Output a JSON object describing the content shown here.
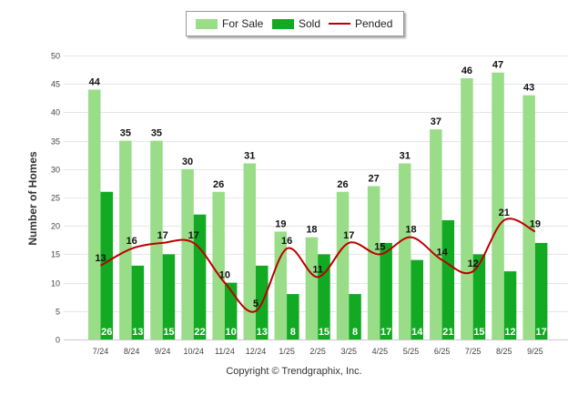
{
  "chart_data": {
    "type": "bar",
    "title": "",
    "xlabel": "",
    "ylabel": "Number of Homes",
    "ylim": [
      0,
      50
    ],
    "yticks": [
      0,
      5,
      10,
      15,
      20,
      25,
      30,
      35,
      40,
      45,
      50
    ],
    "categories": [
      "7/24",
      "8/24",
      "9/24",
      "10/24",
      "11/24",
      "12/24",
      "1/25",
      "2/25",
      "3/25",
      "4/25",
      "5/25",
      "6/25",
      "7/25",
      "8/25",
      "9/25"
    ],
    "series": [
      {
        "name": "For Sale",
        "type": "bar",
        "color": "#99dd88",
        "values": [
          44,
          35,
          35,
          30,
          26,
          31,
          19,
          18,
          26,
          27,
          31,
          37,
          46,
          47,
          43
        ]
      },
      {
        "name": "Sold",
        "type": "bar",
        "color": "#11aa22",
        "values": [
          26,
          13,
          15,
          22,
          10,
          13,
          8,
          15,
          8,
          17,
          14,
          21,
          15,
          12,
          17
        ]
      },
      {
        "name": "Pended",
        "type": "line",
        "color": "#bb0000",
        "values": [
          13,
          16,
          17,
          17,
          10,
          5,
          16,
          11,
          17,
          15,
          18,
          14,
          12,
          21,
          19
        ]
      }
    ],
    "legend": "top-center",
    "copyright": "Copyright © Trendgraphix, Inc."
  }
}
